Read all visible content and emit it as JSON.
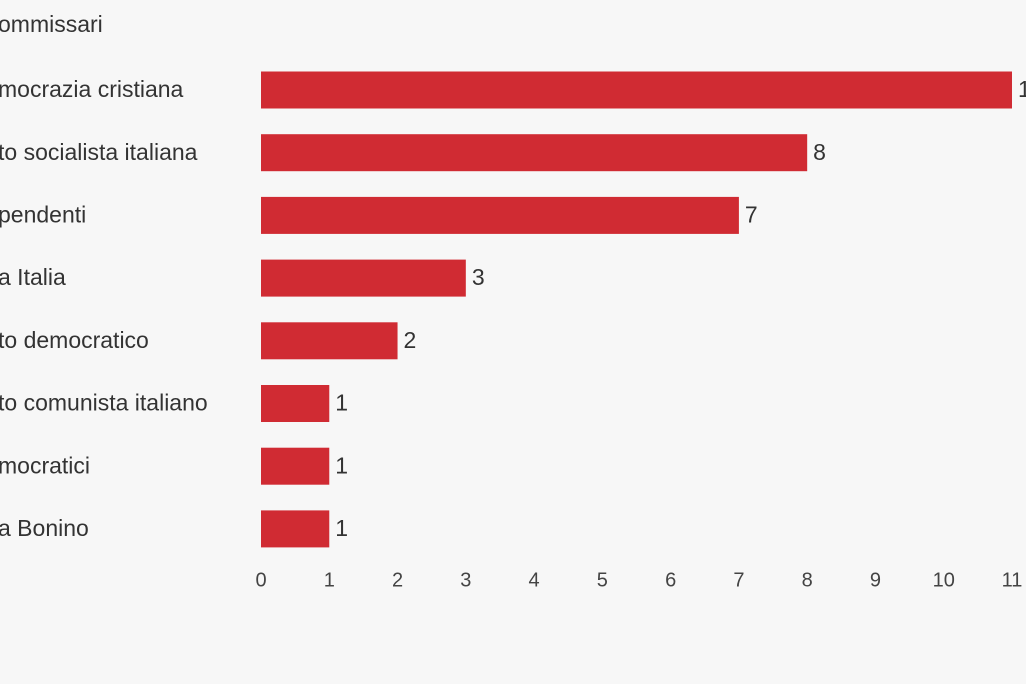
{
  "chart_data": {
    "type": "bar",
    "orientation": "horizontal",
    "title": "ommissari",
    "categories": [
      "mocrazia cristiana",
      "to socialista italiana",
      "pendenti",
      "a Italia",
      "to democratico",
      "to comunista italiano",
      "mocratici",
      "a Bonino"
    ],
    "values": [
      11,
      8,
      7,
      3,
      2,
      1,
      1,
      1
    ],
    "color": "#d02b33",
    "xlim": [
      0,
      11
    ],
    "xticks": [
      0,
      1,
      2,
      3,
      4,
      5,
      6,
      7,
      8,
      9,
      10,
      11
    ],
    "grid": false
  }
}
